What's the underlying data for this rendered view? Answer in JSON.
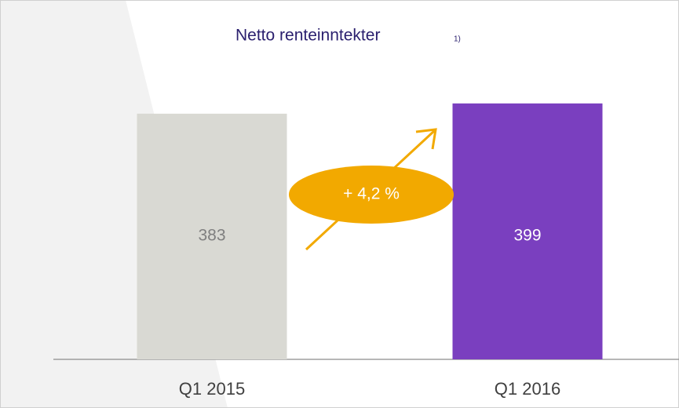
{
  "chart_data": {
    "type": "bar",
    "title": "Netto renteinntekter",
    "title_footnote": "1)",
    "categories": [
      "Q1 2015",
      "Q1 2016"
    ],
    "values": [
      383,
      399
    ],
    "colors": [
      "#d9d9d3",
      "#7a3fbf"
    ],
    "value_label_colors": [
      "#7f7f7f",
      "#ffffff"
    ],
    "ylim": [
      0,
      400
    ],
    "annotation": "+ 4,2 %",
    "annotation_color": "#f2a900"
  }
}
